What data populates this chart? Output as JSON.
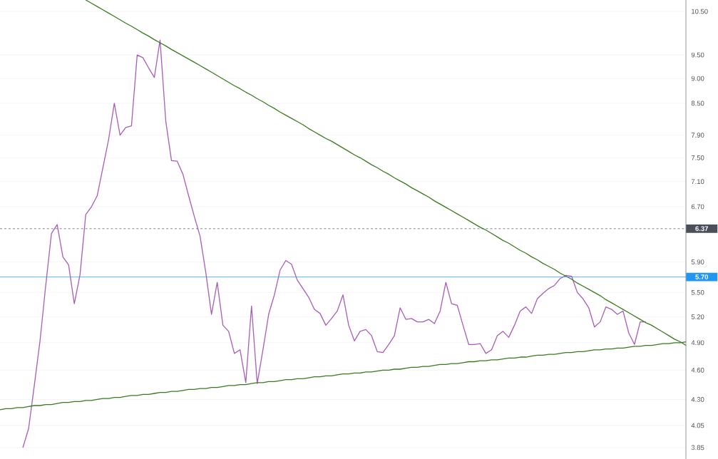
{
  "chart_data": {
    "type": "line",
    "categories": [
      null,
      null,
      null,
      null,
      null,
      null,
      null,
      null,
      null,
      null,
      null,
      null,
      null,
      null,
      null,
      null,
      null,
      null,
      null,
      null,
      null,
      null,
      null,
      null,
      null,
      null,
      null,
      null,
      null,
      null,
      null,
      null,
      null,
      null,
      null,
      null,
      null,
      null,
      null,
      null,
      null,
      null,
      null,
      null,
      null,
      null,
      null,
      null,
      null,
      null,
      null,
      null,
      null,
      null,
      null,
      null,
      null,
      null,
      null,
      null,
      null,
      null,
      null,
      null,
      null,
      null,
      null,
      null,
      null,
      null,
      null,
      null,
      null,
      null,
      null,
      null,
      null,
      null,
      null,
      null,
      null,
      null,
      null,
      null,
      null,
      null,
      null,
      null,
      null,
      null,
      null,
      null,
      null,
      null,
      null,
      null,
      null,
      null,
      null,
      null,
      null,
      null,
      null,
      null,
      null,
      null,
      null,
      null,
      null,
      null,
      null,
      null,
      null,
      null,
      null,
      null,
      null,
      null,
      null,
      null,
      null
    ],
    "series": [
      {
        "color": "#a85cb8",
        "values": [
          null,
          null,
          null,
          null,
          3.85,
          4.02,
          4.44,
          4.92,
          5.59,
          6.3,
          6.43,
          5.97,
          5.86,
          5.36,
          5.73,
          6.58,
          6.7,
          6.87,
          7.33,
          7.82,
          8.5,
          7.9,
          8.04,
          8.07,
          9.5,
          9.44,
          9.22,
          9.02,
          9.83,
          8.16,
          7.45,
          7.44,
          7.22,
          6.87,
          6.55,
          6.26,
          5.76,
          5.23,
          5.63,
          5.1,
          5.03,
          4.78,
          4.82,
          4.47,
          5.33,
          4.46,
          4.82,
          5.23,
          5.47,
          5.79,
          5.92,
          5.87,
          5.66,
          5.55,
          5.44,
          5.29,
          5.24,
          5.1,
          5.18,
          5.27,
          5.47,
          5.1,
          4.92,
          5.03,
          5.05,
          4.98,
          4.8,
          4.79,
          4.88,
          4.98,
          5.31,
          5.17,
          5.18,
          5.14,
          5.14,
          5.17,
          5.12,
          5.27,
          5.63,
          5.36,
          5.34,
          5.1,
          4.88,
          4.88,
          4.89,
          4.78,
          4.82,
          4.98,
          5.03,
          4.96,
          5.1,
          5.27,
          5.32,
          5.24,
          5.42,
          5.49,
          5.55,
          5.59,
          5.68,
          5.72,
          5.71,
          5.5,
          5.42,
          5.31,
          5.08,
          5.14,
          5.32,
          5.29,
          5.23,
          5.27,
          5.01,
          4.88,
          5.14,
          5.14,
          null,
          null,
          null,
          null,
          null,
          null,
          null
        ]
      },
      {
        "color": "#3a7a1e",
        "values": [
          null,
          null,
          null,
          null,
          null,
          null,
          null,
          null,
          null,
          null,
          null,
          null,
          null,
          null,
          null,
          10.78,
          10.7,
          10.62,
          10.54,
          10.46,
          10.38,
          10.3,
          10.22,
          10.15,
          10.07,
          9.99,
          9.92,
          9.84,
          9.77,
          9.7,
          9.62,
          9.55,
          9.48,
          9.41,
          9.34,
          9.27,
          9.2,
          9.13,
          9.06,
          8.99,
          8.92,
          8.85,
          8.79,
          8.72,
          8.66,
          8.59,
          8.53,
          8.46,
          8.4,
          8.33,
          8.27,
          8.21,
          8.15,
          8.09,
          8.02,
          7.96,
          7.9,
          7.84,
          7.79,
          7.73,
          7.67,
          7.61,
          7.55,
          7.5,
          7.44,
          7.38,
          7.33,
          7.27,
          7.22,
          7.16,
          7.11,
          7.06,
          7.0,
          6.95,
          6.9,
          6.85,
          6.79,
          6.74,
          6.69,
          6.64,
          6.59,
          6.54,
          6.49,
          6.44,
          6.39,
          6.35,
          6.3,
          6.25,
          6.2,
          6.16,
          6.11,
          6.06,
          6.02,
          5.97,
          5.93,
          5.88,
          5.84,
          5.8,
          5.75,
          5.71,
          5.67,
          5.62,
          5.58,
          5.54,
          5.5,
          5.46,
          5.41,
          5.37,
          5.33,
          5.29,
          5.25,
          5.21,
          5.17,
          5.13,
          5.1,
          5.06,
          5.02,
          4.98,
          4.94,
          4.91,
          4.87
        ]
      },
      {
        "color": "#3a7a1e",
        "values": [
          4.2,
          4.21,
          4.21,
          4.22,
          4.22,
          4.23,
          4.24,
          4.24,
          4.25,
          4.25,
          4.26,
          4.27,
          4.27,
          4.28,
          4.28,
          4.29,
          4.29,
          4.3,
          4.31,
          4.31,
          4.32,
          4.32,
          4.33,
          4.34,
          4.34,
          4.35,
          4.35,
          4.36,
          4.37,
          4.37,
          4.38,
          4.38,
          4.39,
          4.4,
          4.4,
          4.41,
          4.41,
          4.42,
          4.42,
          4.43,
          4.44,
          4.44,
          4.45,
          4.45,
          4.46,
          4.47,
          4.47,
          4.48,
          4.48,
          4.49,
          4.5,
          4.5,
          4.51,
          4.51,
          4.52,
          4.53,
          4.53,
          4.54,
          4.54,
          4.55,
          4.56,
          4.56,
          4.57,
          4.57,
          4.58,
          4.58,
          4.59,
          4.6,
          4.6,
          4.61,
          4.61,
          4.62,
          4.63,
          4.63,
          4.64,
          4.64,
          4.65,
          4.66,
          4.66,
          4.67,
          4.67,
          4.68,
          4.69,
          4.69,
          4.7,
          4.7,
          4.71,
          4.71,
          4.72,
          4.73,
          4.73,
          4.74,
          4.74,
          4.75,
          4.76,
          4.76,
          4.77,
          4.77,
          4.78,
          4.79,
          4.79,
          4.8,
          4.8,
          4.81,
          4.82,
          4.82,
          4.83,
          4.83,
          4.84,
          4.84,
          4.85,
          4.86,
          4.86,
          4.87,
          4.87,
          4.88,
          4.89,
          4.89,
          4.9,
          4.9,
          4.91
        ]
      }
    ],
    "ylim": [
      3.75,
      10.78
    ],
    "yticks": [
      3.85,
      4.05,
      {
        "value": 4.3,
        "label": "4.30"
      },
      {
        "value": 4.6,
        "label": "4.60"
      },
      {
        "value": 4.9,
        "label": "4.90"
      },
      {
        "value": 5.2,
        "label": "5.20"
      },
      {
        "value": 5.5,
        "label": "5.50"
      },
      {
        "value": 5.9,
        "label": "5.90"
      },
      {
        "value": 6.7,
        "label": "6.70"
      },
      {
        "value": 7.1,
        "label": "7.10"
      },
      {
        "value": 7.5,
        "label": "7.50"
      },
      {
        "value": 7.9,
        "label": "7.90"
      },
      {
        "value": 8.5,
        "label": "8.50"
      },
      {
        "value": 9.0,
        "label": "9.00"
      },
      {
        "value": 9.5,
        "label": "9.50"
      },
      {
        "value": 10.5,
        "label": "10.50"
      }
    ],
    "log": "y",
    "grid": "y",
    "tick_labels": "y",
    "marker": "none",
    "line_style": "solid",
    "ref_lines": [
      {
        "axis": "y",
        "value": 6.37,
        "label": "6.37",
        "color": "#4a4f5a",
        "line_style": "dashed"
      },
      {
        "axis": "y",
        "value": 5.7,
        "label": "5.70",
        "color": "#2196f3",
        "line_style": "solid"
      }
    ]
  }
}
